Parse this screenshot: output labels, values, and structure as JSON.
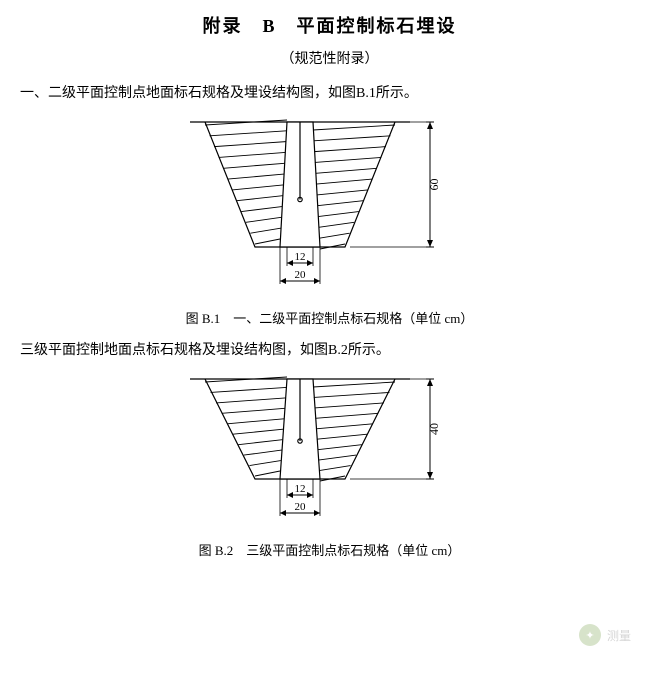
{
  "header": {
    "title": "附录　B　平面控制标石埋设",
    "subtitle": "（规范性附录）"
  },
  "para1": "一、二级平面控制点地面标石规格及埋设结构图，如图B.1所示。",
  "fig1_caption": "图 B.1　一、二级平面控制点标石规格（单位 cm）",
  "para2": "三级平面控制地面点标石规格及埋设结构图，如图B.2所示。",
  "fig2_caption": "图 B.2　三级平面控制点标石规格（单位 cm）",
  "fig1": {
    "type": "engineering-diagram",
    "pit_top_width": 190,
    "pit_bottom_width": 90,
    "pit_depth": 125,
    "marker_top_width": 26,
    "marker_bottom_width": 40,
    "marker_height": 125,
    "dim_height_label": "60",
    "dim_top_label": "12",
    "dim_bottom_label": "20",
    "stroke": "#000000",
    "hatch_color": "#000000",
    "background": "#ffffff",
    "stroke_width": 1.2
  },
  "fig2": {
    "type": "engineering-diagram",
    "pit_top_width": 190,
    "pit_bottom_width": 90,
    "pit_depth": 100,
    "marker_top_width": 26,
    "marker_bottom_width": 40,
    "marker_height": 100,
    "dim_height_label": "40",
    "dim_top_label": "12",
    "dim_bottom_label": "20",
    "stroke": "#000000",
    "hatch_color": "#000000",
    "background": "#ffffff",
    "stroke_width": 1.2
  },
  "watermark": "测量"
}
